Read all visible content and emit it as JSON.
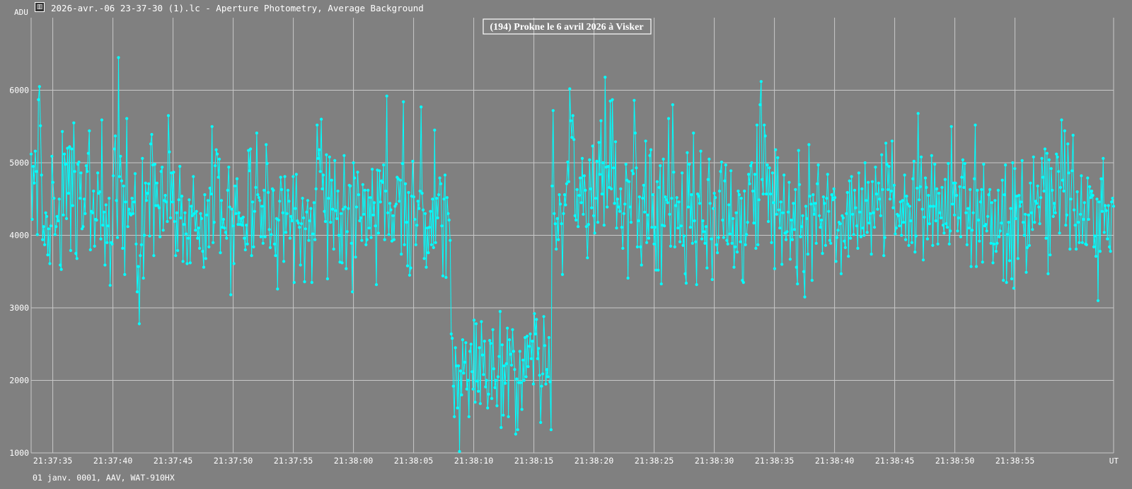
{
  "window": {
    "title": "2026-avr.-06 23-37-30 (1).lc - Aperture Photometry, Average Background",
    "icon": "chart-window-icon"
  },
  "footer": "01 janv. 0001, AAV, WAT-910HX",
  "chart_data": {
    "type": "line",
    "title": "(194) Prokne le 6 avril 2026 à Visker",
    "ylabel": "ADU",
    "xlabel": "UT",
    "ylim": [
      1000,
      7000
    ],
    "yticks": [
      1000,
      2000,
      3000,
      4000,
      5000,
      6000
    ],
    "xlim": [
      "21:37:33.2",
      "21:39:03.2"
    ],
    "xticks": [
      "21:37:35",
      "21:37:40",
      "21:37:45",
      "21:37:50",
      "21:37:55",
      "21:38:00",
      "21:38:05",
      "21:38:10",
      "21:38:15",
      "21:38:20",
      "21:38:25",
      "21:38:30",
      "21:38:35",
      "21:38:40",
      "21:38:45",
      "21:38:50",
      "21:38:55"
    ],
    "grid": true,
    "series": [
      {
        "color": "#00ffff",
        "marker": "circle",
        "x_start": "21:37:33.2",
        "x_end": "21:39:03.2",
        "values": [
          5120,
          4220,
          4950,
          4720,
          5160,
          4880,
          4010,
          5870,
          6050,
          5510,
          4830,
          3940,
          4120,
          3870,
          4310,
          4260,
          3730,
          4090,
          3610,
          4130,
          5090,
          4730,
          4510,
          4010,
          4120,
          4260,
          4200,
          4500,
          3590,
          3530,
          5430,
          4280,
          5120,
          4980,
          4230,
          5200,
          4580,
          5220,
          3790,
          5190,
          4410,
          5550,
          4880,
          3750,
          3680,
          4980,
          5010,
          4510,
          4860,
          4090,
          4120,
          4500,
          4300,
          4960,
          4880,
          5130,
          5440,
          3800,
          4330,
          4310,
          4610,
          3850,
          4220,
          4210,
          4860,
          4580,
          4600,
          3950,
          5590,
          4140,
          4320,
          3590,
          4420,
          3900,
          4130,
          4510,
          3310,
          3900,
          3880,
          4820,
          5190,
          5370,
          4480,
          3970,
          6450,
          4810,
          5090,
          4750,
          3820,
          4680,
          3460,
          4460,
          5610,
          4120,
          4360,
          4300,
          4280,
          4510,
          4300,
          4460,
          4850,
          3880,
          3220,
          3570,
          2780,
          3720,
          3870,
          5060,
          3410,
          4000,
          4720,
          4480,
          4580,
          4710,
          3990,
          5260,
          5390,
          4970,
          3720,
          4980,
          4410,
          4720,
          4410,
          4380,
          3980,
          4880,
          4940,
          4070,
          4480,
          4550,
          4460,
          4190,
          5650,
          5150,
          4240,
          4860,
          4460,
          4870,
          4190,
          3720,
          4310,
          3790,
          4490,
          4950,
          4240,
          4540,
          3640,
          4150,
          4310,
          4020,
          3610,
          3960,
          4490,
          3620,
          4400,
          4270,
          4810,
          4300,
          4070,
          4330,
          3960,
          4100,
          3820,
          4300,
          4230,
          3780,
          3560,
          4560,
          3680,
          4280,
          4480,
          3840,
          4650,
          4570,
          5500,
          3900,
          4180,
          4960,
          5180,
          5120,
          4800,
          5050,
          3760,
          4480,
          4110,
          4220,
          4100,
          4040,
          3960,
          4620,
          4940,
          4390,
          3180,
          4360,
          4130,
          3610,
          4680,
          4300,
          4780,
          4150,
          4310,
          4150,
          4230,
          4140,
          4250,
          3960,
          3800,
          4140,
          3880,
          5170,
          4890,
          5190,
          3720,
          4460,
          3840,
          4330,
          4660,
          5410,
          4560,
          4520,
          4480,
          3980,
          4400,
          3890,
          4620,
          3980,
          5250,
          4990,
          4590,
          4080,
          3830,
          4010,
          4640,
          4620,
          3880,
          3720,
          4230,
          3260,
          4210,
          4470,
          4800,
          4630,
          4310,
          3640,
          4810,
          4040,
          4300,
          4620,
          4470,
          3960,
          4260,
          4200,
          4810,
          3350,
          4370,
          4840,
          4200,
          4170,
          4110,
          3590,
          4160,
          4510,
          4240,
          3360,
          4090,
          4320,
          4480,
          3930,
          4200,
          4370,
          3350,
          4020,
          4450,
          3940,
          4640,
          5520,
          5060,
          5180,
          4880,
          5600,
          4640,
          4830,
          4330,
          4190,
          5110,
          3400,
          4510,
          5080,
          4180,
          4760,
          4360,
          3810,
          5030,
          4340,
          4230,
          4610,
          4000,
          3630,
          4300,
          3620,
          4360,
          5100,
          4390,
          3540,
          4050,
          4370,
          4690,
          4680,
          3890,
          3220,
          5000,
          4790,
          3700,
          4390,
          4870,
          4560,
          4200,
          4240,
          3930,
          4700,
          4290,
          4620,
          3870,
          3940,
          4620,
          4100,
          4520,
          3970,
          4910,
          4280,
          4450,
          4130,
          3320,
          4900,
          4030,
          4890,
          4460,
          4750,
          4730,
          4970,
          3940,
          4610,
          5920,
          4310,
          4010,
          4440,
          4350,
          3920,
          4270,
          3940,
          4400,
          4430,
          4800,
          4780,
          4470,
          4760,
          3740,
          4990,
          5840,
          3870,
          4710,
          4180,
          3580,
          4590,
          3450,
          3550,
          4540,
          5020,
          4530,
          4220,
          3870,
          4140,
          4470,
          4370,
          4610,
          5770,
          4580,
          4350,
          3680,
          4300,
          3560,
          4100,
          3760,
          4110,
          4330,
          3870,
          4500,
          3830,
          5450,
          3900,
          4510,
          4240,
          4560,
          4790,
          4710,
          4130,
          3440,
          4500,
          4830,
          3420,
          4520,
          4300,
          4210,
          3930,
          2640,
          2580,
          1920,
          1500,
          2450,
          2200,
          1620,
          2200,
          1020,
          2130,
          1800,
          2560,
          2100,
          2250,
          2520,
          1880,
          2000,
          1500,
          2400,
          2500,
          2120,
          1880,
          2830,
          1700,
          2780,
          1990,
          1850,
          2450,
          1680,
          2810,
          2350,
          2080,
          2540,
          1910,
          2000,
          1620,
          1810,
          2550,
          2510,
          1750,
          2700,
          2160,
          1900,
          2000,
          1650,
          2050,
          2330,
          2950,
          1350,
          2490,
          1520,
          2200,
          1960,
          2230,
          2720,
          1500,
          2560,
          2360,
          2210,
          2700,
          2400,
          2150,
          1260,
          2020,
          1320,
          1970,
          2400,
          1970,
          1600,
          2280,
          2000,
          2590,
          2050,
          2610,
          2190,
          2470,
          2640,
          2300,
          2540,
          1950,
          2920,
          2640,
          2840,
          2300,
          2440,
          2070,
          1420,
          1920,
          2090,
          2880,
          2480,
          1950,
          2150,
          2050,
          2590,
          1980,
          1320,
          4680,
          5720,
          4300,
          4160,
          3810,
          4230,
          3940,
          4560,
          4430,
          4160,
          3460,
          4300,
          4560,
          4420,
          4710,
          5010,
          4740,
          6020,
          5580,
          5350,
          5650,
          5320,
          4270,
          4210,
          4630,
          4120,
          4550,
          4790,
          4450,
          5060,
          4290,
          4820,
          4620,
          4120,
          3690,
          4150,
          5040,
          4640,
          4380,
          5230,
          4270,
          4030,
          4510,
          5020,
          4180,
          5280,
          4840,
          5580,
          4570,
          5000,
          4140,
          6180,
          4940,
          4390,
          4950,
          4660,
          5850,
          4640,
          5870,
          4930,
          4440,
          5290,
          4100,
          4500,
          4390,
          4330,
          4640,
          4110,
          3820,
          4300,
          4430,
          4980,
          4760,
          3410,
          4740,
          4390,
          4180,
          4890,
          4850,
          5860,
          5410,
          4930,
          3840,
          4200,
          4530,
          3840,
          3590,
          4510,
          4690,
          4320,
          5300,
          3900,
          4280,
          3960,
          5100,
          5180,
          4110,
          4560,
          3880,
          4110,
          3520,
          4740,
          3520,
          4660,
          4960,
          3330,
          4140,
          5050,
          4130,
          4530,
          4490,
          4450,
          5610,
          4290,
          3850,
          4510,
          5800,
          4870,
          3840,
          4410,
          4520,
          4100,
          4460,
          3910,
          4130,
          4860,
          3860,
          3990,
          3470,
          3340,
          5140,
          4390,
          4980,
          4110,
          4560,
          3890,
          5410,
          4200,
          3910,
          3320,
          4570,
          4540,
          4440,
          5160,
          3950,
          4200,
          4050,
          3890,
          4120,
          3550,
          4770,
          5050,
          4440,
          3950,
          3390,
          4370,
          4580,
          4520,
          3870,
          3760,
          3970,
          4610,
          4880,
          5010,
          4210,
          3970,
          4750,
          4970,
          3930,
          3880,
          4420,
          4020,
          4890,
          3890,
          4230,
          3560,
          3840,
          4310,
          3770,
          4610,
          4560,
          3910,
          4510,
          3380,
          3350,
          4610,
          3870,
          4010,
          4180,
          4840,
          4710,
          4960,
          5000,
          4610,
          4170,
          4840,
          3820,
          5520,
          3870,
          4490,
          5800,
          6120,
          4770,
          4570,
          5520,
          5370,
          4570,
          4970,
          4190,
          4930,
          4570,
          3900,
          4860,
          4450,
          3540,
          5180,
          4290,
          5070,
          4350,
          4100,
          4460,
          3600,
          4310,
          4830,
          4030,
          3940,
          4050,
          4320,
          4730,
          3670,
          4210,
          3940,
          4440,
          4080,
          4630,
          3560,
          3330,
          5170,
          4700,
          3980,
          4120,
          4270,
          3500,
          3150,
          4400,
          4230,
          3740,
          5250,
          4540,
          4430,
          3380,
          4560,
          4290,
          4440,
          3890,
          4710,
          4970,
          4270,
          4110,
          4210,
          3750,
          4530,
          4440,
          3860,
          4510,
          4840,
          4330,
          3930,
          3890,
          4560,
          4490,
          4640,
          4520,
          3640,
          3970,
          4070,
          4180,
          4160,
          3470,
          4270,
          4240,
          3920,
          3830,
          4300,
          4590,
          3710,
          4750,
          3960,
          4810,
          4290,
          4010,
          4620,
          4380,
          4130,
          3820,
          4860,
          4320,
          3980,
          4640,
          4100,
          4000,
          5000,
          4480,
          4040,
          4730,
          4170,
          4300,
          3740,
          4740,
          4310,
          4110,
          4940,
          4570,
          4360,
          4720,
          4500,
          4270,
          5110,
          4630,
          3720,
          3970,
          5270,
          4980,
          4630,
          4950,
          4500,
          4610,
          5300,
          4380,
          4690,
          4020,
          4100,
          4290,
          4270,
          4130,
          4460,
          4000,
          4480,
          4180,
          4830,
          3940,
          4540,
          4430,
          3860,
          4400,
          4200,
          3900,
          4780,
          5020,
          3770,
          3990,
          4650,
          5680,
          4490,
          4670,
          5080,
          4360,
          3660,
          4250,
          4790,
          4660,
          3950,
          4550,
          4160,
          4400,
          5100,
          3860,
          4400,
          4980,
          4200,
          4640,
          3880,
          4580,
          4310,
          4240,
          4660,
          4140,
          4030,
          4770,
          4160,
          4110,
          4990,
          3880,
          4060,
          5500,
          4430,
          4720,
          4280,
          4720,
          4550,
          4060,
          4240,
          4670,
          3980,
          4800,
          5040,
          4660,
          4990,
          4310,
          3870,
          4370,
          4100,
          4630,
          3570,
          4070,
          4310,
          4780,
          5520,
          3570,
          4620,
          4210,
          3920,
          4460,
          4630,
          3630,
          4980,
          4130,
          4150,
          4060,
          4260,
          4560,
          4630,
          3890,
          4450,
          3620,
          3880,
          4480,
          3780,
          3890,
          4620,
          3980,
          4060,
          4170,
          4760,
          3380,
          4560,
          4970,
          3350,
          4010,
          4180,
          3650,
          4370,
          3400,
          5000,
          3270,
          4920,
          4230,
          4540,
          3680,
          4550,
          4400,
          4460,
          5030,
          4180,
          4000,
          4290,
          3490,
          3830,
          4280,
          3860,
          4720,
          4310,
          4080,
          5080,
          4180,
          4470,
          4440,
          4680,
          4390,
          4160,
          4520,
          5060,
          4800,
          4610,
          5190,
          3960,
          5130,
          3470,
          5040,
          3730,
          4920,
          4620,
          4260,
          4440,
          4310,
          5120,
          5080,
          4880,
          4030,
          4660,
          5590,
          4760,
          4610,
          5440,
          4140,
          4280,
          5260,
          4860,
          3810,
          4500,
          4890,
          5380,
          4350,
          4140,
          3810,
          4600,
          4180,
          3900,
          4290,
          4820,
          3900,
          4220,
          4450,
          3880,
          3870,
          4790,
          4220,
          4670,
          4520,
          4610,
          4550,
          3840,
          3990,
          3710,
          4500,
          3100,
          4460,
          3780,
          4780,
          4330,
          5060,
          4040,
          4410,
          4340,
          3950,
          4410,
          3840,
          3780,
          4460,
          4510,
          4400
        ]
      }
    ]
  }
}
